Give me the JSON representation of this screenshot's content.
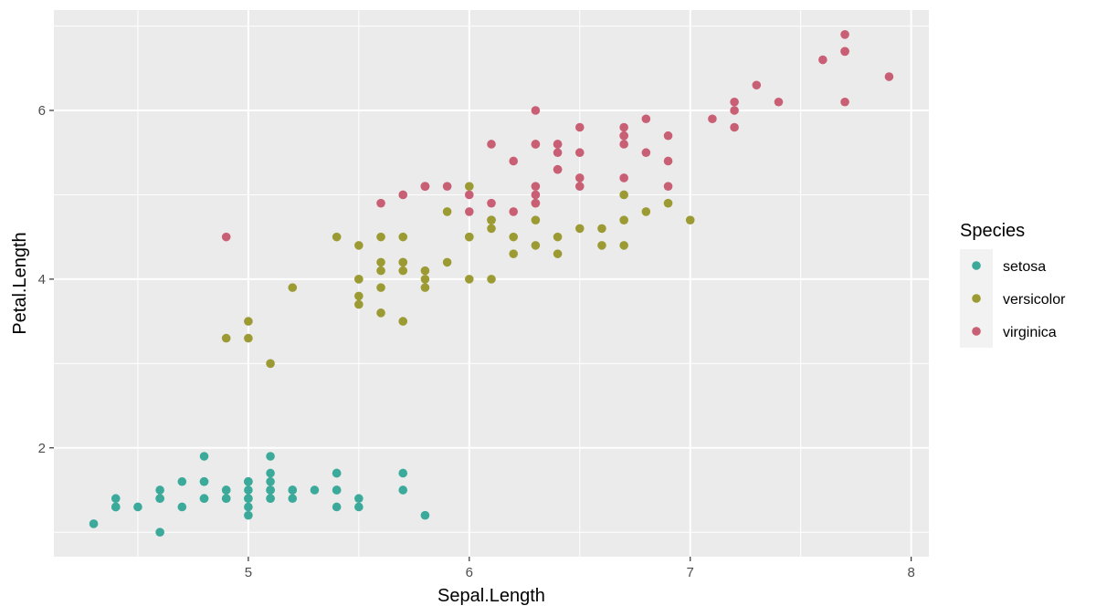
{
  "chart_data": {
    "type": "scatter",
    "title": "",
    "xlabel": "Sepal.Length",
    "ylabel": "Petal.Length",
    "xlim": [
      4.12,
      8.08
    ],
    "ylim": [
      0.71,
      7.19
    ],
    "x_ticks": [
      5,
      6,
      7,
      8
    ],
    "y_ticks": [
      2,
      4,
      6
    ],
    "grid": true,
    "legend": {
      "title": "Species",
      "placement": "right"
    },
    "series": [
      {
        "name": "setosa",
        "color": "#3BAA9A",
        "points": [
          [
            5.1,
            1.4
          ],
          [
            4.9,
            1.4
          ],
          [
            4.7,
            1.3
          ],
          [
            4.6,
            1.5
          ],
          [
            5.0,
            1.4
          ],
          [
            5.4,
            1.7
          ],
          [
            4.6,
            1.4
          ],
          [
            5.0,
            1.5
          ],
          [
            4.4,
            1.4
          ],
          [
            4.9,
            1.5
          ],
          [
            5.4,
            1.5
          ],
          [
            4.8,
            1.6
          ],
          [
            4.8,
            1.4
          ],
          [
            4.3,
            1.1
          ],
          [
            5.8,
            1.2
          ],
          [
            5.7,
            1.5
          ],
          [
            5.4,
            1.3
          ],
          [
            5.1,
            1.4
          ],
          [
            5.7,
            1.7
          ],
          [
            5.1,
            1.5
          ],
          [
            5.4,
            1.7
          ],
          [
            5.1,
            1.5
          ],
          [
            4.6,
            1.0
          ],
          [
            5.1,
            1.7
          ],
          [
            4.8,
            1.9
          ],
          [
            5.0,
            1.6
          ],
          [
            5.0,
            1.6
          ],
          [
            5.2,
            1.5
          ],
          [
            5.2,
            1.4
          ],
          [
            4.7,
            1.6
          ],
          [
            4.8,
            1.6
          ],
          [
            5.4,
            1.5
          ],
          [
            5.2,
            1.5
          ],
          [
            5.5,
            1.4
          ],
          [
            4.9,
            1.5
          ],
          [
            5.0,
            1.2
          ],
          [
            5.5,
            1.3
          ],
          [
            4.9,
            1.4
          ],
          [
            4.4,
            1.3
          ],
          [
            5.1,
            1.5
          ],
          [
            5.0,
            1.3
          ],
          [
            4.5,
            1.3
          ],
          [
            4.4,
            1.3
          ],
          [
            5.0,
            1.6
          ],
          [
            5.1,
            1.9
          ],
          [
            4.8,
            1.4
          ],
          [
            5.1,
            1.6
          ],
          [
            4.6,
            1.4
          ],
          [
            5.3,
            1.5
          ],
          [
            5.0,
            1.4
          ]
        ]
      },
      {
        "name": "versicolor",
        "color": "#9C9A33",
        "points": [
          [
            7.0,
            4.7
          ],
          [
            6.4,
            4.5
          ],
          [
            6.9,
            4.9
          ],
          [
            5.5,
            4.0
          ],
          [
            6.5,
            4.6
          ],
          [
            5.7,
            4.5
          ],
          [
            6.3,
            4.7
          ],
          [
            4.9,
            3.3
          ],
          [
            6.6,
            4.6
          ],
          [
            5.2,
            3.9
          ],
          [
            5.0,
            3.5
          ],
          [
            5.9,
            4.2
          ],
          [
            6.0,
            4.0
          ],
          [
            6.1,
            4.7
          ],
          [
            5.6,
            3.6
          ],
          [
            6.7,
            4.4
          ],
          [
            5.6,
            4.5
          ],
          [
            5.8,
            4.1
          ],
          [
            6.2,
            4.5
          ],
          [
            5.6,
            3.9
          ],
          [
            5.9,
            4.8
          ],
          [
            6.1,
            4.0
          ],
          [
            6.3,
            4.9
          ],
          [
            6.1,
            4.7
          ],
          [
            6.4,
            4.3
          ],
          [
            6.6,
            4.4
          ],
          [
            6.8,
            4.8
          ],
          [
            6.7,
            5.0
          ],
          [
            6.0,
            4.5
          ],
          [
            5.7,
            3.5
          ],
          [
            5.5,
            3.8
          ],
          [
            5.5,
            3.7
          ],
          [
            5.8,
            3.9
          ],
          [
            6.0,
            5.1
          ],
          [
            5.4,
            4.5
          ],
          [
            6.0,
            4.5
          ],
          [
            6.7,
            4.7
          ],
          [
            6.3,
            4.4
          ],
          [
            5.6,
            4.1
          ],
          [
            5.5,
            4.0
          ],
          [
            5.5,
            4.4
          ],
          [
            6.1,
            4.6
          ],
          [
            5.8,
            4.0
          ],
          [
            5.0,
            3.3
          ],
          [
            5.6,
            4.2
          ],
          [
            5.7,
            4.2
          ],
          [
            5.7,
            4.2
          ],
          [
            6.2,
            4.3
          ],
          [
            5.1,
            3.0
          ],
          [
            5.7,
            4.1
          ]
        ]
      },
      {
        "name": "virginica",
        "color": "#C95F74",
        "points": [
          [
            6.3,
            6.0
          ],
          [
            5.8,
            5.1
          ],
          [
            7.1,
            5.9
          ],
          [
            6.3,
            5.6
          ],
          [
            6.5,
            5.8
          ],
          [
            7.6,
            6.6
          ],
          [
            4.9,
            4.5
          ],
          [
            7.3,
            6.3
          ],
          [
            6.7,
            5.8
          ],
          [
            7.2,
            6.1
          ],
          [
            6.5,
            5.1
          ],
          [
            6.4,
            5.3
          ],
          [
            6.8,
            5.5
          ],
          [
            5.7,
            5.0
          ],
          [
            5.8,
            5.1
          ],
          [
            6.4,
            5.3
          ],
          [
            6.5,
            5.5
          ],
          [
            7.7,
            6.7
          ],
          [
            7.7,
            6.9
          ],
          [
            6.0,
            5.0
          ],
          [
            6.9,
            5.7
          ],
          [
            5.6,
            4.9
          ],
          [
            7.7,
            6.7
          ],
          [
            6.3,
            4.9
          ],
          [
            6.7,
            5.7
          ],
          [
            7.2,
            6.0
          ],
          [
            6.2,
            4.8
          ],
          [
            6.1,
            4.9
          ],
          [
            6.4,
            5.6
          ],
          [
            7.2,
            5.8
          ],
          [
            7.4,
            6.1
          ],
          [
            7.9,
            6.4
          ],
          [
            6.4,
            5.6
          ],
          [
            6.3,
            5.1
          ],
          [
            6.1,
            5.6
          ],
          [
            7.7,
            6.1
          ],
          [
            6.3,
            5.6
          ],
          [
            6.4,
            5.5
          ],
          [
            6.0,
            4.8
          ],
          [
            6.9,
            5.4
          ],
          [
            6.7,
            5.6
          ],
          [
            6.9,
            5.1
          ],
          [
            5.8,
            5.1
          ],
          [
            6.8,
            5.9
          ],
          [
            6.7,
            5.7
          ],
          [
            6.7,
            5.2
          ],
          [
            6.3,
            5.0
          ],
          [
            6.5,
            5.2
          ],
          [
            6.2,
            5.4
          ],
          [
            5.9,
            5.1
          ]
        ]
      }
    ]
  }
}
